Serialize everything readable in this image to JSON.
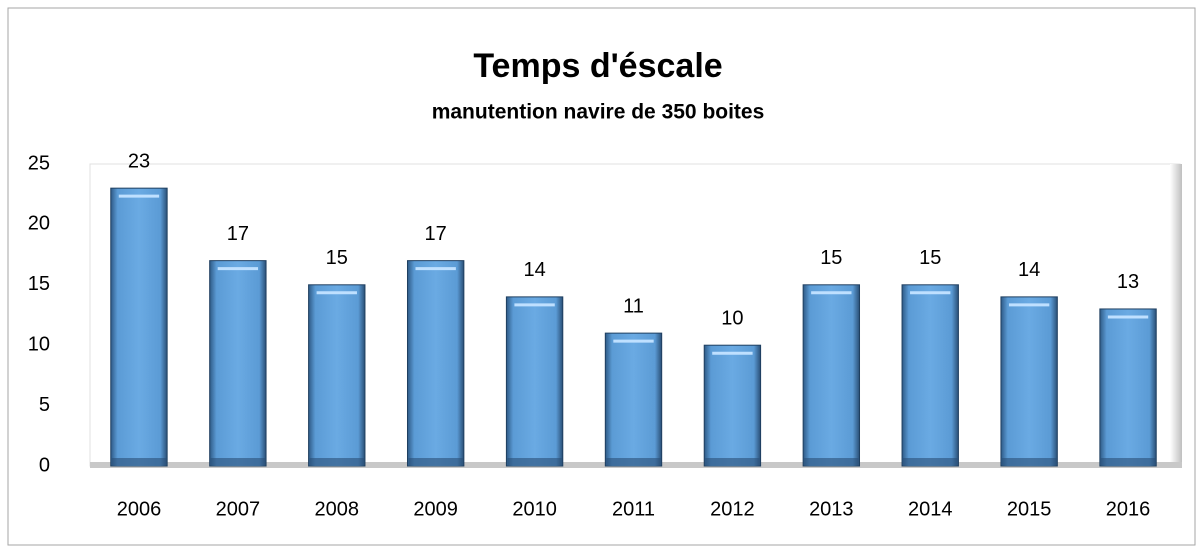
{
  "chart_data": {
    "type": "bar",
    "title": "Temps d'éscale",
    "subtitle": "manutention navire de 350 boites",
    "categories": [
      "2006",
      "2007",
      "2008",
      "2009",
      "2010",
      "2011",
      "2012",
      "2013",
      "2014",
      "2015",
      "2016"
    ],
    "values": [
      23,
      17,
      15,
      17,
      14,
      11,
      10,
      15,
      15,
      14,
      13
    ],
    "color": "#5b9bd5",
    "ylim": [
      0,
      25
    ],
    "yticks": [
      0,
      5,
      10,
      15,
      20,
      25
    ],
    "grid": false,
    "data_labels": true
  }
}
